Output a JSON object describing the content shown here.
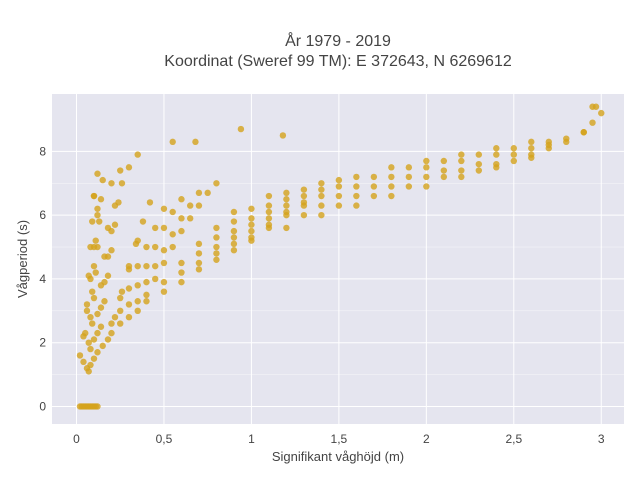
{
  "chart_data": {
    "type": "scatter",
    "title": [
      "År 1979 - 2019",
      "Koordinat (Sweref 99 TM): E 372643, N 6269612"
    ],
    "xlabel": "Signifikant våghöjd (m)",
    "ylabel": "Vågperiod (s)",
    "xlim": [
      -0.14,
      3.13
    ],
    "ylim": [
      -0.55,
      9.8
    ],
    "xticks": [
      0,
      0.5,
      1,
      1.5,
      2,
      2.5,
      3
    ],
    "xtick_labels": [
      "0",
      "0,5",
      "1",
      "1,5",
      "2",
      "2,5",
      "3"
    ],
    "yticks": [
      0,
      2,
      4,
      6,
      8
    ],
    "ytick_labels": [
      "0",
      "2",
      "4",
      "6",
      "8"
    ],
    "grid": true,
    "marker_color": "#d4a21c",
    "background_color": "#e5e5ef",
    "series": [
      {
        "x": [
          0.02,
          0.04,
          0.06,
          0.08,
          0.1,
          0.12,
          0.04,
          0.05,
          0.06,
          0.07,
          0.08,
          0.09,
          0.1,
          0.06,
          0.07,
          0.08,
          0.09,
          0.1,
          0.11,
          0.12,
          0.07,
          0.08,
          0.09,
          0.1,
          0.11,
          0.12,
          0.13,
          0.14,
          0.08,
          0.1,
          0.12,
          0.14,
          0.16,
          0.18,
          0.1,
          0.12,
          0.14,
          0.16,
          0.18,
          0.2,
          0.22,
          0.12,
          0.14,
          0.16,
          0.18,
          0.2,
          0.22,
          0.24,
          0.26,
          0.15,
          0.2,
          0.25,
          0.3,
          0.35,
          0.18,
          0.22,
          0.26,
          0.3,
          0.34,
          0.38,
          0.42,
          0.2,
          0.25,
          0.3,
          0.35,
          0.4,
          0.45,
          0.5,
          0.25,
          0.3,
          0.35,
          0.4,
          0.45,
          0.5,
          0.55,
          0.6,
          0.3,
          0.35,
          0.4,
          0.45,
          0.5,
          0.55,
          0.6,
          0.65,
          0.7,
          0.35,
          0.4,
          0.45,
          0.5,
          0.55,
          0.6,
          0.65,
          0.7,
          0.75,
          0.8,
          0.4,
          0.5,
          0.6,
          0.7,
          0.8,
          0.9,
          0.5,
          0.6,
          0.7,
          0.8,
          0.9,
          1,
          1.1,
          0.6,
          0.7,
          0.8,
          0.9,
          1,
          1.1,
          1.2,
          0.7,
          0.8,
          0.9,
          1,
          1.1,
          1.2,
          1.3,
          0.8,
          0.9,
          1,
          1.1,
          1.2,
          1.3,
          1.4,
          0.9,
          1,
          1.1,
          1.2,
          1.3,
          1.4,
          1.5,
          1,
          1.1,
          1.2,
          1.3,
          1.4,
          1.5,
          1.6,
          1.2,
          1.3,
          1.4,
          1.5,
          1.6,
          1.7,
          1.8,
          1.4,
          1.5,
          1.6,
          1.7,
          1.8,
          1.9,
          2,
          1.6,
          1.7,
          1.8,
          1.9,
          2,
          2.1,
          2.2,
          1.8,
          1.9,
          2,
          2.1,
          2.2,
          2.3,
          2.4,
          2,
          2.1,
          2.2,
          2.3,
          2.4,
          2.5,
          2.6,
          2.2,
          2.3,
          2.4,
          2.5,
          2.6,
          2.7,
          2.4,
          2.5,
          2.6,
          2.7,
          2.8,
          2.9,
          2.6,
          2.7,
          2.8,
          2.9,
          2.95,
          3,
          0.1,
          0.12,
          0.15,
          0.2,
          0.25,
          0.3,
          0.35,
          0.94,
          0.55,
          0.68,
          1.18,
          2.95,
          2.97,
          0.02,
          0.03,
          0.04,
          0.05,
          0.06,
          0.07,
          0.08,
          0.09,
          0.1,
          0.11,
          0.12
        ],
        "y": [
          1.6,
          2.2,
          3,
          4,
          5,
          6.2,
          1.4,
          2.3,
          3.2,
          4.1,
          5,
          5.8,
          6.6,
          1.2,
          2,
          2.8,
          3.6,
          4.4,
          5.2,
          6,
          1.1,
          1.8,
          2.6,
          3.4,
          4.2,
          5,
          5.8,
          6.5,
          1.3,
          2.1,
          2.9,
          3.8,
          4.7,
          5.6,
          1.5,
          2.3,
          3.1,
          3.9,
          4.7,
          5.5,
          6.3,
          1.7,
          2.5,
          3.3,
          4.1,
          4.9,
          5.7,
          6.4,
          7,
          1.9,
          2.6,
          3.4,
          4.3,
          5.2,
          2.1,
          2.8,
          3.6,
          4.4,
          5.1,
          5.8,
          6.4,
          2.3,
          3,
          3.7,
          4.4,
          5,
          5.6,
          6.2,
          2.6,
          3.2,
          3.8,
          4.4,
          5,
          5.6,
          6.1,
          6.5,
          2.8,
          3.3,
          3.9,
          4.4,
          4.9,
          5.4,
          5.9,
          6.3,
          6.7,
          3,
          3.5,
          4,
          4.5,
          5,
          5.5,
          5.9,
          6.3,
          6.7,
          7,
          3.3,
          3.9,
          4.5,
          5.1,
          5.6,
          6.1,
          3.6,
          4.2,
          4.8,
          5.3,
          5.8,
          6.2,
          6.6,
          3.9,
          4.5,
          5,
          5.5,
          5.9,
          6.3,
          6.7,
          4.3,
          4.8,
          5.3,
          5.7,
          6.1,
          6.5,
          6.8,
          4.6,
          5.1,
          5.5,
          5.9,
          6.3,
          6.6,
          7,
          4.9,
          5.3,
          5.7,
          6.1,
          6.4,
          6.8,
          7.1,
          5.2,
          5.6,
          6,
          6.3,
          6.6,
          6.9,
          7.2,
          5.6,
          6,
          6.3,
          6.6,
          6.9,
          7.2,
          7.5,
          6,
          6.3,
          6.6,
          6.9,
          7.2,
          7.5,
          7.7,
          6.3,
          6.6,
          6.9,
          7.2,
          7.5,
          7.7,
          7.9,
          6.6,
          6.9,
          7.2,
          7.4,
          7.7,
          7.9,
          8.1,
          6.9,
          7.2,
          7.4,
          7.6,
          7.9,
          8.1,
          8.3,
          7.2,
          7.4,
          7.6,
          7.9,
          8.1,
          8.3,
          7.5,
          7.7,
          7.9,
          8.2,
          8.4,
          8.6,
          7.8,
          8.1,
          8.3,
          8.6,
          8.9,
          9.2,
          6.6,
          7.3,
          7.1,
          7.0,
          7.4,
          7.5,
          7.9,
          8.7,
          8.3,
          8.3,
          8.5,
          9.4,
          9.4,
          0,
          0,
          0,
          0,
          0,
          0,
          0,
          0,
          0,
          0,
          0
        ]
      }
    ]
  }
}
